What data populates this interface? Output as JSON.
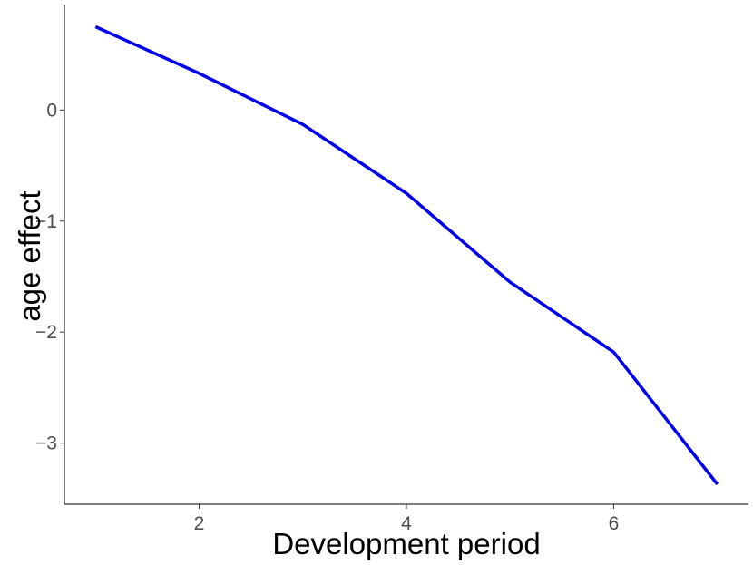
{
  "chart_data": {
    "type": "line",
    "title": "",
    "xlabel": "Development period",
    "ylabel": "age effect",
    "x": [
      1,
      2,
      3,
      4,
      5,
      6,
      7
    ],
    "series": [
      {
        "values": [
          0.75,
          0.33,
          -0.13,
          -0.75,
          -1.55,
          -2.18,
          -3.37
        ]
      }
    ],
    "xlim": [
      0.7,
      7.3
    ],
    "ylim": [
      -3.55,
      0.95
    ],
    "xticks": [
      2,
      4,
      6
    ],
    "yticks": [
      0,
      -1,
      -2,
      -3
    ],
    "xtick_labels": [
      "2",
      "4",
      "6"
    ],
    "ytick_labels": [
      "0",
      "−1",
      "−2",
      "−3"
    ],
    "grid": false,
    "legend": "none",
    "colors": {
      "line": "#0000ee",
      "axis": "#333333",
      "tick_text": "#4d4d4d"
    }
  }
}
